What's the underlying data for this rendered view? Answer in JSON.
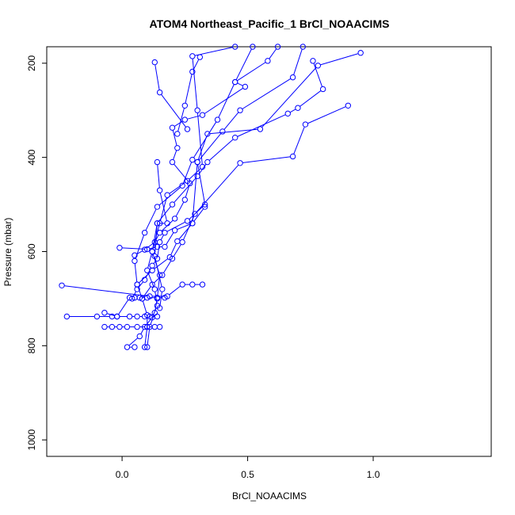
{
  "chart_data": {
    "type": "line",
    "title": "ATOM4 Northeast_Pacific_1 BrCl_NOAACIMS",
    "xlabel": "BrCl_NOAACIMS",
    "ylabel": "Pressure (mbar)",
    "xlim": [
      -0.3,
      1.47
    ],
    "ylim": [
      1035,
      165
    ],
    "y_reversed": true,
    "grid": false,
    "marker": "open-circle",
    "colors": {
      "series": "#0000ff",
      "axis": "#000000"
    },
    "x_ticks": [
      {
        "value": 0.0,
        "label": "0.0"
      },
      {
        "value": 0.5,
        "label": "0.5"
      },
      {
        "value": 1.0,
        "label": "1.0"
      }
    ],
    "y_ticks": [
      {
        "value": 200,
        "label": "200"
      },
      {
        "value": 400,
        "label": "400"
      },
      {
        "value": 600,
        "label": "600"
      },
      {
        "value": 800,
        "label": "800"
      },
      {
        "value": 1000,
        "label": "1000"
      }
    ],
    "series": [
      {
        "points": [
          [
            0.05,
            803
          ],
          [
            0.02,
            803
          ],
          [
            0.07,
            780
          ],
          [
            0.09,
            760
          ],
          [
            0.12,
            740
          ],
          [
            0.14,
            715
          ],
          [
            0.13,
            680
          ],
          [
            0.1,
            640
          ],
          [
            0.12,
            600
          ],
          [
            0.15,
            540
          ],
          [
            0.18,
            480
          ],
          [
            0.26,
            450
          ],
          [
            0.32,
            420
          ],
          [
            0.3,
            300
          ],
          [
            0.28,
            185
          ],
          [
            0.45,
            165
          ]
        ]
      },
      {
        "points": [
          [
            0.09,
            803
          ],
          [
            0.1,
            760
          ],
          [
            0.1,
            735
          ],
          [
            0.08,
            700
          ],
          [
            0.06,
            670
          ],
          [
            0.05,
            620
          ],
          [
            0.09,
            560
          ],
          [
            0.14,
            505
          ],
          [
            0.24,
            460
          ],
          [
            0.28,
            405
          ],
          [
            0.38,
            320
          ],
          [
            0.45,
            240
          ],
          [
            0.58,
            195
          ],
          [
            0.62,
            165
          ]
        ]
      },
      {
        "points": [
          [
            0.1,
            803
          ],
          [
            0.11,
            760
          ],
          [
            0.13,
            730
          ],
          [
            0.14,
            700
          ],
          [
            0.15,
            650
          ],
          [
            0.12,
            600
          ],
          [
            0.14,
            540
          ],
          [
            0.2,
            500
          ],
          [
            0.3,
            440
          ],
          [
            0.34,
            410
          ],
          [
            0.45,
            358
          ],
          [
            0.66,
            307
          ],
          [
            0.7,
            295
          ],
          [
            0.8,
            255
          ],
          [
            0.76,
            195
          ]
        ]
      },
      {
        "points": [
          [
            -0.22,
            738
          ],
          [
            -0.1,
            738
          ],
          [
            -0.04,
            738
          ],
          [
            -0.02,
            738
          ],
          [
            0.03,
            738
          ],
          [
            0.06,
            738
          ],
          [
            0.09,
            738
          ],
          [
            0.11,
            738
          ],
          [
            0.14,
            738
          ]
        ]
      },
      {
        "points": [
          [
            -0.07,
            760
          ],
          [
            -0.04,
            760
          ],
          [
            -0.01,
            760
          ],
          [
            0.02,
            760
          ],
          [
            0.06,
            760
          ],
          [
            0.1,
            760
          ],
          [
            0.13,
            760
          ],
          [
            0.15,
            760
          ]
        ]
      },
      {
        "points": [
          [
            -0.24,
            672
          ],
          [
            0.11,
            695
          ],
          [
            0.18,
            695
          ],
          [
            0.24,
            670
          ],
          [
            0.28,
            670
          ],
          [
            0.32,
            670
          ]
        ]
      },
      {
        "points": [
          [
            -0.07,
            730
          ],
          [
            -0.02,
            738
          ],
          [
            0.03,
            698
          ],
          [
            0.05,
            698
          ],
          [
            0.07,
            698
          ],
          [
            0.1,
            698
          ],
          [
            0.14,
            698
          ],
          [
            0.17,
            698
          ]
        ]
      },
      {
        "points": [
          [
            -0.01,
            592
          ],
          [
            0.1,
            595
          ],
          [
            0.14,
            590
          ],
          [
            0.17,
            590
          ],
          [
            0.21,
            555
          ],
          [
            0.28,
            540
          ],
          [
            0.3,
            410
          ],
          [
            0.34,
            350
          ],
          [
            0.55,
            340
          ],
          [
            0.78,
            205
          ],
          [
            0.95,
            178
          ]
        ]
      },
      {
        "points": [
          [
            0.05,
            608
          ],
          [
            0.09,
            596
          ],
          [
            0.13,
            580
          ],
          [
            0.15,
            560
          ],
          [
            0.21,
            530
          ],
          [
            0.25,
            490
          ],
          [
            0.27,
            455
          ],
          [
            0.2,
            410
          ],
          [
            0.22,
            380
          ],
          [
            0.2,
            337
          ],
          [
            0.25,
            320
          ],
          [
            0.32,
            310
          ],
          [
            0.49,
            250
          ],
          [
            0.45,
            240
          ],
          [
            0.52,
            165
          ]
        ]
      },
      {
        "points": [
          [
            0.04,
            700
          ],
          [
            0.06,
            680
          ],
          [
            0.09,
            660
          ],
          [
            0.12,
            630
          ],
          [
            0.14,
            615
          ],
          [
            0.15,
            580
          ],
          [
            0.17,
            560
          ],
          [
            0.26,
            535
          ],
          [
            0.33,
            500
          ],
          [
            0.3,
            410
          ],
          [
            0.4,
            345
          ],
          [
            0.47,
            300
          ],
          [
            0.68,
            230
          ],
          [
            0.72,
            165
          ]
        ]
      },
      {
        "points": [
          [
            0.08,
            700
          ],
          [
            0.12,
            670
          ],
          [
            0.16,
            650
          ],
          [
            0.2,
            615
          ],
          [
            0.24,
            580
          ],
          [
            0.29,
            520
          ],
          [
            0.47,
            412
          ],
          [
            0.68,
            398
          ],
          [
            0.73,
            330
          ],
          [
            0.9,
            290
          ]
        ]
      },
      {
        "points": [
          [
            0.14,
            410
          ],
          [
            0.15,
            470
          ],
          [
            0.18,
            540
          ],
          [
            0.14,
            540
          ],
          [
            0.13,
            610
          ],
          [
            0.16,
            680
          ],
          [
            0.15,
            720
          ]
        ]
      },
      {
        "points": [
          [
            0.13,
            198
          ],
          [
            0.15,
            262
          ],
          [
            0.26,
            340
          ]
        ]
      },
      {
        "points": [
          [
            0.22,
            350
          ],
          [
            0.25,
            290
          ],
          [
            0.28,
            218
          ],
          [
            0.31,
            187
          ]
        ]
      },
      {
        "points": [
          [
            0.06,
            670
          ],
          [
            0.12,
            640
          ],
          [
            0.19,
            612
          ],
          [
            0.22,
            578
          ],
          [
            0.28,
            540
          ],
          [
            0.33,
            505
          ]
        ]
      }
    ]
  }
}
